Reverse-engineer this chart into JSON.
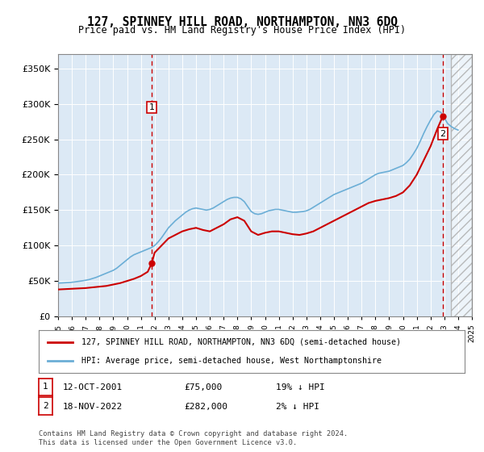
{
  "title": "127, SPINNEY HILL ROAD, NORTHAMPTON, NN3 6DQ",
  "subtitle": "Price paid vs. HM Land Registry's House Price Index (HPI)",
  "bg_color": "#dce9f5",
  "plot_bg_color": "#dce9f5",
  "hpi_color": "#6baed6",
  "price_color": "#cc0000",
  "vline_color": "#cc0000",
  "sale1_year": 2001.79,
  "sale1_price": 75000,
  "sale1_label": "1",
  "sale2_year": 2022.88,
  "sale2_price": 282000,
  "sale2_label": "2",
  "xmin": 1995,
  "xmax": 2025,
  "ymin": 0,
  "ymax": 370000,
  "legend_property": "127, SPINNEY HILL ROAD, NORTHAMPTON, NN3 6DQ (semi-detached house)",
  "legend_hpi": "HPI: Average price, semi-detached house, West Northamptonshire",
  "table_row1": [
    "1",
    "12-OCT-2001",
    "£75,000",
    "19% ↓ HPI"
  ],
  "table_row2": [
    "2",
    "18-NOV-2022",
    "£282,000",
    "2% ↓ HPI"
  ],
  "footer": "Contains HM Land Registry data © Crown copyright and database right 2024.\nThis data is licensed under the Open Government Licence v3.0.",
  "hpi_data": {
    "years": [
      1995,
      1995.25,
      1995.5,
      1995.75,
      1996,
      1996.25,
      1996.5,
      1996.75,
      1997,
      1997.25,
      1997.5,
      1997.75,
      1998,
      1998.25,
      1998.5,
      1998.75,
      1999,
      1999.25,
      1999.5,
      1999.75,
      2000,
      2000.25,
      2000.5,
      2000.75,
      2001,
      2001.25,
      2001.5,
      2001.75,
      2002,
      2002.25,
      2002.5,
      2002.75,
      2003,
      2003.25,
      2003.5,
      2003.75,
      2004,
      2004.25,
      2004.5,
      2004.75,
      2005,
      2005.25,
      2005.5,
      2005.75,
      2006,
      2006.25,
      2006.5,
      2006.75,
      2007,
      2007.25,
      2007.5,
      2007.75,
      2008,
      2008.25,
      2008.5,
      2008.75,
      2009,
      2009.25,
      2009.5,
      2009.75,
      2010,
      2010.25,
      2010.5,
      2010.75,
      2011,
      2011.25,
      2011.5,
      2011.75,
      2012,
      2012.25,
      2012.5,
      2012.75,
      2013,
      2013.25,
      2013.5,
      2013.75,
      2014,
      2014.25,
      2014.5,
      2014.75,
      2015,
      2015.25,
      2015.5,
      2015.75,
      2016,
      2016.25,
      2016.5,
      2016.75,
      2017,
      2017.25,
      2017.5,
      2017.75,
      2018,
      2018.25,
      2018.5,
      2018.75,
      2019,
      2019.25,
      2019.5,
      2019.75,
      2020,
      2020.25,
      2020.5,
      2020.75,
      2021,
      2021.25,
      2021.5,
      2021.75,
      2022,
      2022.25,
      2022.5,
      2022.75,
      2023,
      2023.25,
      2023.5,
      2023.75,
      2024
    ],
    "values": [
      47000,
      47200,
      47500,
      47800,
      48200,
      48800,
      49500,
      50200,
      51000,
      52000,
      53500,
      55000,
      57000,
      59000,
      61000,
      63000,
      65000,
      68000,
      72000,
      76000,
      80000,
      84000,
      87000,
      89000,
      91000,
      93000,
      95000,
      97000,
      100000,
      105000,
      111000,
      118000,
      125000,
      130000,
      135000,
      139000,
      143000,
      147000,
      150000,
      152000,
      153000,
      152000,
      151000,
      150000,
      151000,
      153000,
      156000,
      159000,
      162000,
      165000,
      167000,
      168000,
      168000,
      166000,
      162000,
      155000,
      148000,
      145000,
      144000,
      145000,
      147000,
      149000,
      150000,
      151000,
      151000,
      150000,
      149000,
      148000,
      147000,
      147000,
      147500,
      148000,
      149000,
      151000,
      154000,
      157000,
      160000,
      163000,
      166000,
      169000,
      172000,
      174000,
      176000,
      178000,
      180000,
      182000,
      184000,
      186000,
      188000,
      191000,
      194000,
      197000,
      200000,
      202000,
      203000,
      204000,
      205000,
      207000,
      209000,
      211000,
      213000,
      217000,
      222000,
      229000,
      237000,
      247000,
      258000,
      268000,
      277000,
      285000,
      290000,
      288000,
      280000,
      272000,
      268000,
      265000,
      263000
    ]
  },
  "price_data": {
    "years": [
      1995,
      1995.5,
      1996,
      1996.5,
      1997,
      1997.5,
      1998,
      1998.5,
      1999,
      1999.5,
      2000,
      2000.5,
      2001,
      2001.5,
      2001.79,
      2002,
      2002.5,
      2003,
      2003.5,
      2004,
      2004.5,
      2005,
      2005.5,
      2006,
      2006.5,
      2007,
      2007.5,
      2008,
      2008.5,
      2009,
      2009.5,
      2010,
      2010.5,
      2011,
      2011.5,
      2012,
      2012.5,
      2013,
      2013.5,
      2014,
      2014.5,
      2015,
      2015.5,
      2016,
      2016.5,
      2017,
      2017.5,
      2018,
      2018.5,
      2019,
      2019.5,
      2020,
      2020.5,
      2021,
      2021.5,
      2022,
      2022.5,
      2022.88
    ],
    "values": [
      38000,
      38500,
      39000,
      39500,
      40000,
      41000,
      42000,
      43000,
      45000,
      47000,
      50000,
      53000,
      57000,
      63000,
      75000,
      90000,
      100000,
      110000,
      115000,
      120000,
      123000,
      125000,
      122000,
      120000,
      125000,
      130000,
      137000,
      140000,
      135000,
      120000,
      115000,
      118000,
      120000,
      120000,
      118000,
      116000,
      115000,
      117000,
      120000,
      125000,
      130000,
      135000,
      140000,
      145000,
      150000,
      155000,
      160000,
      163000,
      165000,
      167000,
      170000,
      175000,
      185000,
      200000,
      220000,
      240000,
      265000,
      282000
    ]
  }
}
